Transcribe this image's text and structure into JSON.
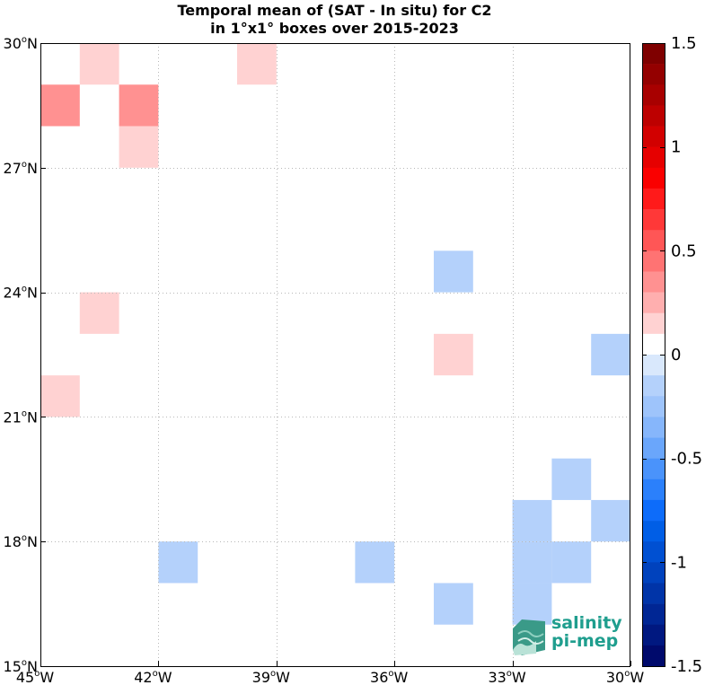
{
  "title": {
    "line1": "Temporal mean of (SAT - In situ) for C2",
    "line2": "in 1°x1° boxes over 2015-2023"
  },
  "chart_data": {
    "type": "heatmap",
    "xlim": [
      -45,
      -30
    ],
    "ylim": [
      15,
      30
    ],
    "x_ticks": [
      {
        "value": -45,
        "label": "45",
        "suffix": "W"
      },
      {
        "value": -42,
        "label": "42",
        "suffix": "W"
      },
      {
        "value": -39,
        "label": "39",
        "suffix": "W"
      },
      {
        "value": -36,
        "label": "36",
        "suffix": "W"
      },
      {
        "value": -33,
        "label": "33",
        "suffix": "W"
      },
      {
        "value": -30,
        "label": "30",
        "suffix": "W"
      }
    ],
    "y_ticks": [
      {
        "value": 15,
        "label": "15",
        "suffix": "N"
      },
      {
        "value": 18,
        "label": "18",
        "suffix": "N"
      },
      {
        "value": 21,
        "label": "21",
        "suffix": "N"
      },
      {
        "value": 24,
        "label": "24",
        "suffix": "N"
      },
      {
        "value": 27,
        "label": "27",
        "suffix": "N"
      },
      {
        "value": 30,
        "label": "30",
        "suffix": "N"
      }
    ],
    "grid": true,
    "cells": [
      {
        "lon": -44,
        "lat": 29,
        "value": 0.15
      },
      {
        "lon": -40,
        "lat": 29,
        "value": 0.15
      },
      {
        "lon": -45,
        "lat": 28,
        "value": 0.3
      },
      {
        "lon": -43,
        "lat": 28,
        "value": 0.3
      },
      {
        "lon": -43,
        "lat": 27,
        "value": 0.15
      },
      {
        "lon": -35,
        "lat": 24,
        "value": -0.1
      },
      {
        "lon": -44,
        "lat": 23,
        "value": 0.15
      },
      {
        "lon": -35,
        "lat": 22,
        "value": 0.15
      },
      {
        "lon": -31,
        "lat": 22,
        "value": -0.1
      },
      {
        "lon": -45,
        "lat": 21,
        "value": 0.15
      },
      {
        "lon": -32,
        "lat": 19,
        "value": -0.1
      },
      {
        "lon": -33,
        "lat": 18,
        "value": -0.1
      },
      {
        "lon": -31,
        "lat": 18,
        "value": -0.1
      },
      {
        "lon": -42,
        "lat": 17,
        "value": -0.1
      },
      {
        "lon": -37,
        "lat": 17,
        "value": -0.1
      },
      {
        "lon": -33,
        "lat": 17,
        "value": -0.1
      },
      {
        "lon": -32,
        "lat": 17,
        "value": -0.1
      },
      {
        "lon": -35,
        "lat": 16,
        "value": -0.1
      },
      {
        "lon": -33,
        "lat": 16,
        "value": -0.1
      }
    ],
    "colorbar": {
      "min": -1.5,
      "max": 1.5,
      "step": 0.1,
      "tick_values": [
        1.5,
        1,
        0.5,
        0,
        -0.5,
        -1,
        -1.5
      ],
      "tick_labels": [
        "1.5",
        "1",
        "0.5",
        "0",
        "-0.5",
        "-1",
        "-1.5"
      ],
      "colors_top_to_bottom": [
        "#7f0000",
        "#940000",
        "#a80000",
        "#bd0000",
        "#d20000",
        "#e60000",
        "#fa0000",
        "#ff1a1a",
        "#ff3838",
        "#ff5656",
        "#ff7373",
        "#ff9191",
        "#ffafaf",
        "#ffd2d2",
        "#ffffff",
        "#d9e8fc",
        "#b4d1fb",
        "#9ec4fb",
        "#86b6fb",
        "#6aa6fb",
        "#4a93fb",
        "#2b80fb",
        "#0d6cfa",
        "#005ee6",
        "#0050d2",
        "#0042bd",
        "#0034a8",
        "#002694",
        "#001880",
        "#000a6c"
      ]
    }
  },
  "logo": {
    "line1": "salinity",
    "line2": "pi-mep"
  }
}
